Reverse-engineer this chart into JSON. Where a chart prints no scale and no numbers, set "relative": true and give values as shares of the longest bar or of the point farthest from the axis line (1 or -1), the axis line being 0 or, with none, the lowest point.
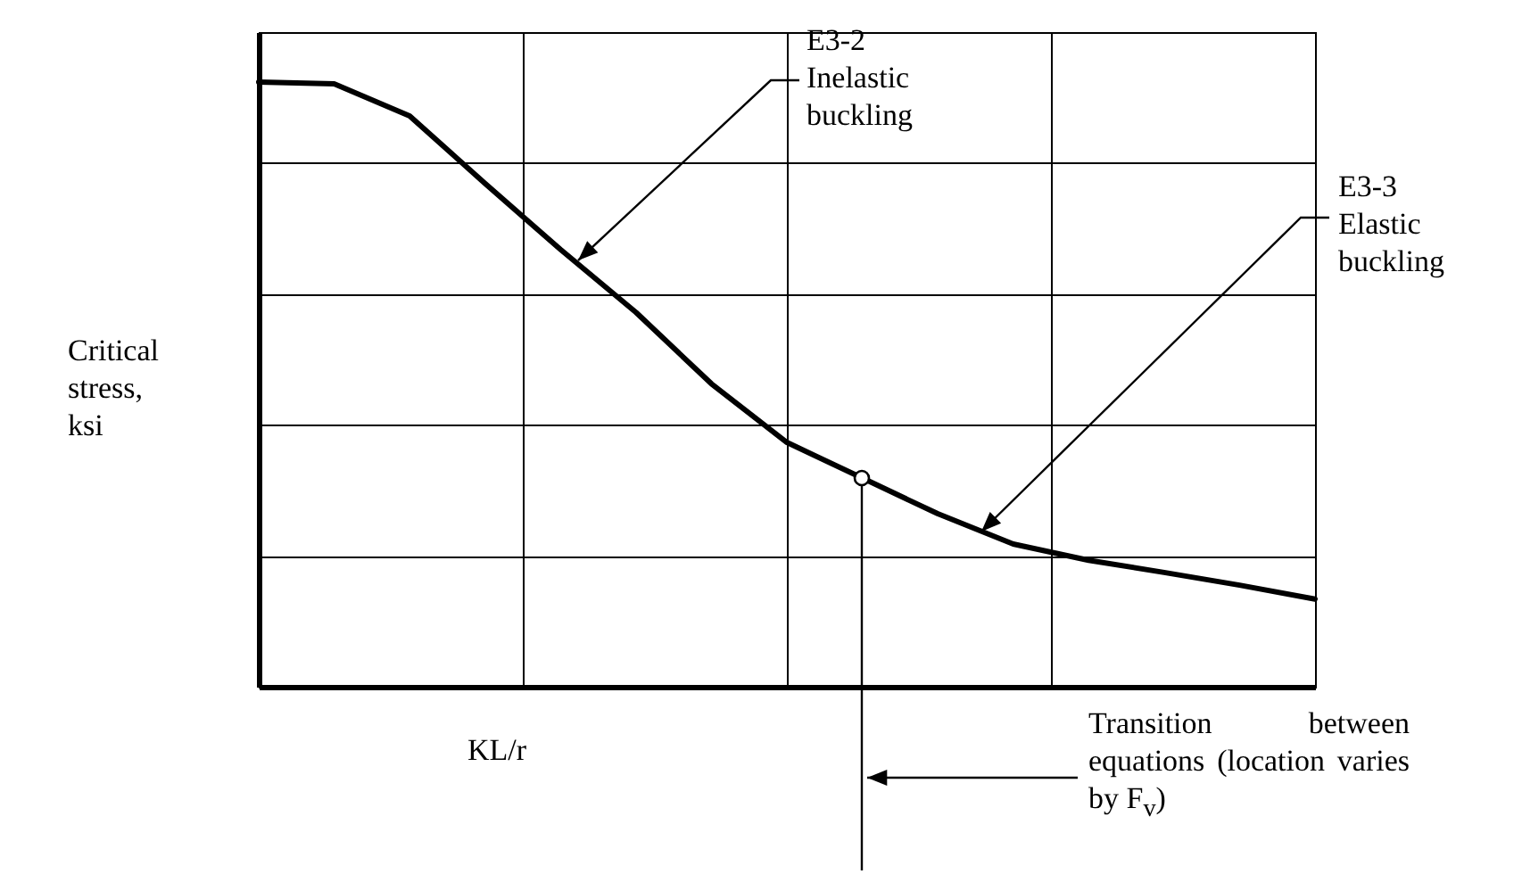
{
  "chart_data": {
    "type": "line",
    "relative": true,
    "xlabel": "KL/r",
    "ylabel": "Critical stress, ksi",
    "grid": true,
    "categories": [
      null,
      null,
      null,
      null,
      null,
      null,
      null,
      null,
      null,
      null,
      null,
      null,
      null,
      null,
      null
    ],
    "series": [
      {
        "color": "#000000",
        "values": [
          1.0,
          0.997,
          0.944,
          0.832,
          0.723,
          0.619,
          0.501,
          0.404,
          0.345,
          0.286,
          0.236,
          0.209,
          0.189,
          0.168,
          0.145
        ]
      }
    ],
    "annotations": [
      "E3-2 Inelastic buckling",
      "E3-3 Elastic buckling",
      "Transition between equations (location varies by F$_{v}$)"
    ]
  }
}
